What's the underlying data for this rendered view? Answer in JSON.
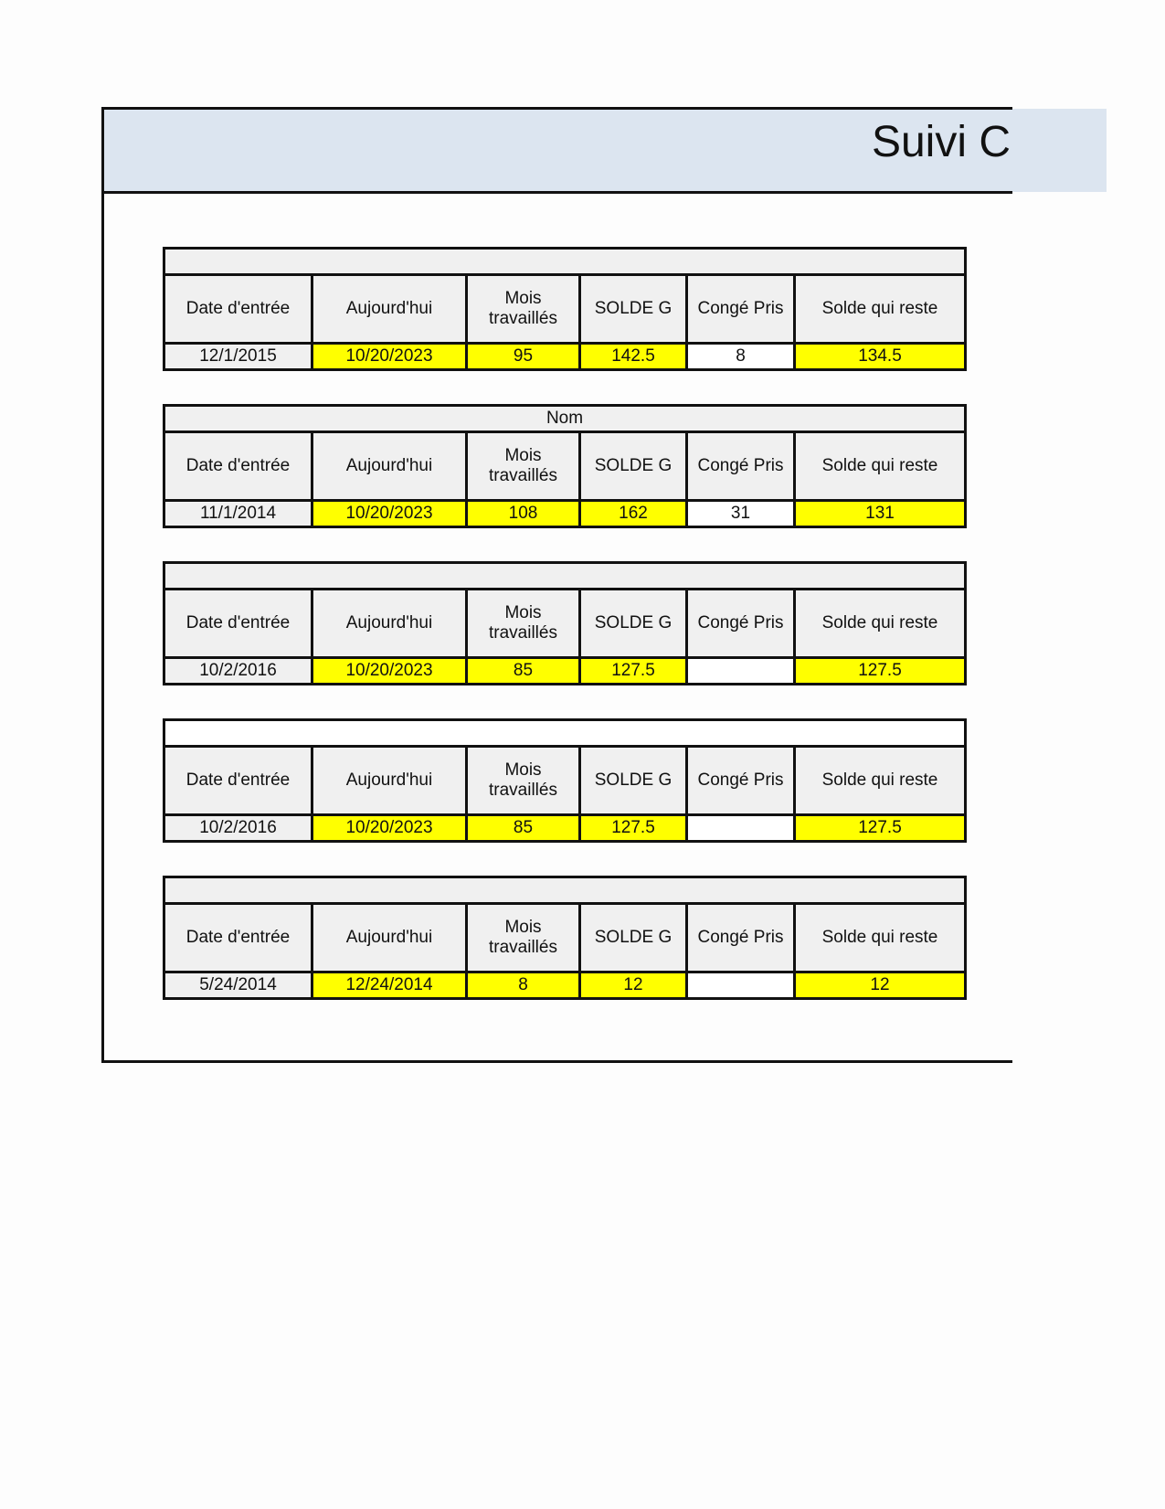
{
  "title": "Suivi C",
  "headers": [
    "Date d'entrée",
    "Aujourd'hui",
    "Mois travaillés",
    "SOLDE G",
    "Congé Pris",
    "Solde qui reste"
  ],
  "colors": {
    "highlight": "#ffff00",
    "header_band": "#dce5f0",
    "header_cell": "#f0f0f0"
  },
  "tables": [
    {
      "caption": "",
      "row": [
        "12/1/2015",
        "10/20/2023",
        "95",
        "142.5",
        "8",
        "134.5"
      ]
    },
    {
      "caption": "Nom",
      "row": [
        "11/1/2014",
        "10/20/2023",
        "108",
        "162",
        "31",
        "131"
      ]
    },
    {
      "caption": "",
      "row": [
        "10/2/2016",
        "10/20/2023",
        "85",
        "127.5",
        "",
        "127.5"
      ]
    },
    {
      "caption": "",
      "row": [
        "10/2/2016",
        "10/20/2023",
        "85",
        "127.5",
        "",
        "127.5"
      ]
    },
    {
      "caption": "",
      "row": [
        "5/24/2014",
        "12/24/2014",
        "8",
        "12",
        "",
        "12"
      ]
    }
  ]
}
